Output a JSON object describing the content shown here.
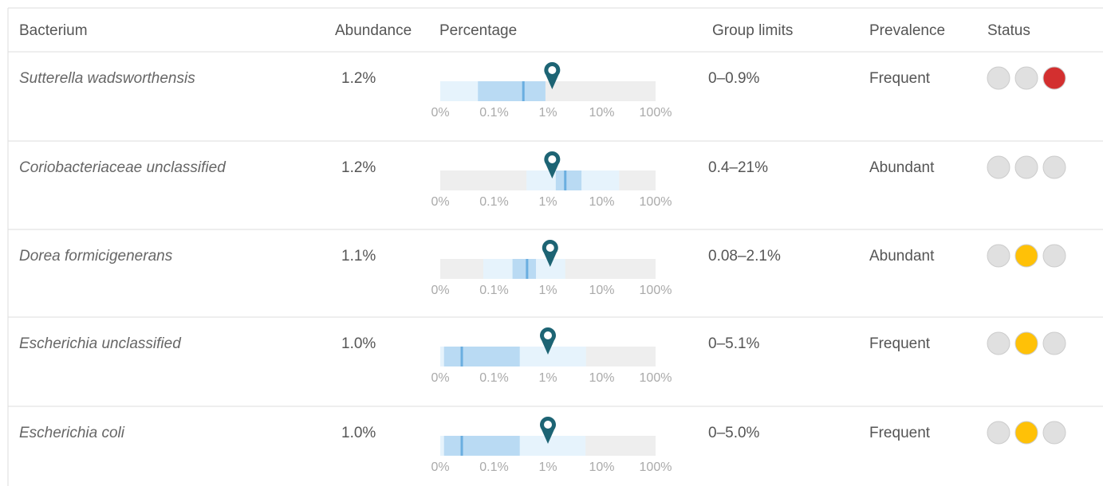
{
  "table": {
    "headers": [
      "Bacterium",
      "Abundance",
      "Percentage",
      "Group limits",
      "Prevalence",
      "Status"
    ],
    "scale": {
      "ticks": [
        {
          "value": 0,
          "label": "0%"
        },
        {
          "value": 0.1,
          "label": "0.1%"
        },
        {
          "value": 1,
          "label": "1%"
        },
        {
          "value": 10,
          "label": "10%"
        },
        {
          "value": 100,
          "label": "100%"
        }
      ]
    },
    "rows": [
      {
        "bacterium": "Sutterella wadsworthensis",
        "abundance": "1.2%",
        "marker": 1.2,
        "outer": [
          0,
          0.9
        ],
        "inner": [
          0.07,
          0.9
        ],
        "median": 0.35,
        "limits": "0–0.9%",
        "prevalence": "Frequent",
        "status": [
          "#e0e0e0",
          "#e0e0e0",
          "#d32f2f"
        ]
      },
      {
        "bacterium": "Coriobacteriaceae unclassified",
        "abundance": "1.2%",
        "marker": 1.2,
        "outer": [
          0.4,
          21
        ],
        "inner": [
          1.4,
          4.2
        ],
        "median": 2.1,
        "limits": "0.4–21%",
        "prevalence": "Abundant",
        "status": [
          "#e0e0e0",
          "#e0e0e0",
          "#e0e0e0"
        ]
      },
      {
        "bacterium": "Dorea formicigenerans",
        "abundance": "1.1%",
        "marker": 1.1,
        "outer": [
          0.08,
          2.1
        ],
        "inner": [
          0.22,
          0.6
        ],
        "median": 0.41,
        "limits": "0.08–2.1%",
        "prevalence": "Abundant",
        "status": [
          "#e0e0e0",
          "#ffc107",
          "#e0e0e0"
        ]
      },
      {
        "bacterium": "Escherichia unclassified",
        "abundance": "1.0%",
        "marker": 1.0,
        "outer": [
          0,
          5.1
        ],
        "inner": [
          0.007,
          0.3
        ],
        "median": 0.04,
        "limits": "0–5.1%",
        "prevalence": "Frequent",
        "status": [
          "#e0e0e0",
          "#ffc107",
          "#e0e0e0"
        ]
      },
      {
        "bacterium": "Escherichia coli",
        "abundance": "1.0%",
        "marker": 1.0,
        "outer": [
          0,
          5.0
        ],
        "inner": [
          0.007,
          0.3
        ],
        "median": 0.04,
        "limits": "0–5.0%",
        "prevalence": "Frequent",
        "status": [
          "#e0e0e0",
          "#ffc107",
          "#e0e0e0"
        ]
      }
    ]
  }
}
